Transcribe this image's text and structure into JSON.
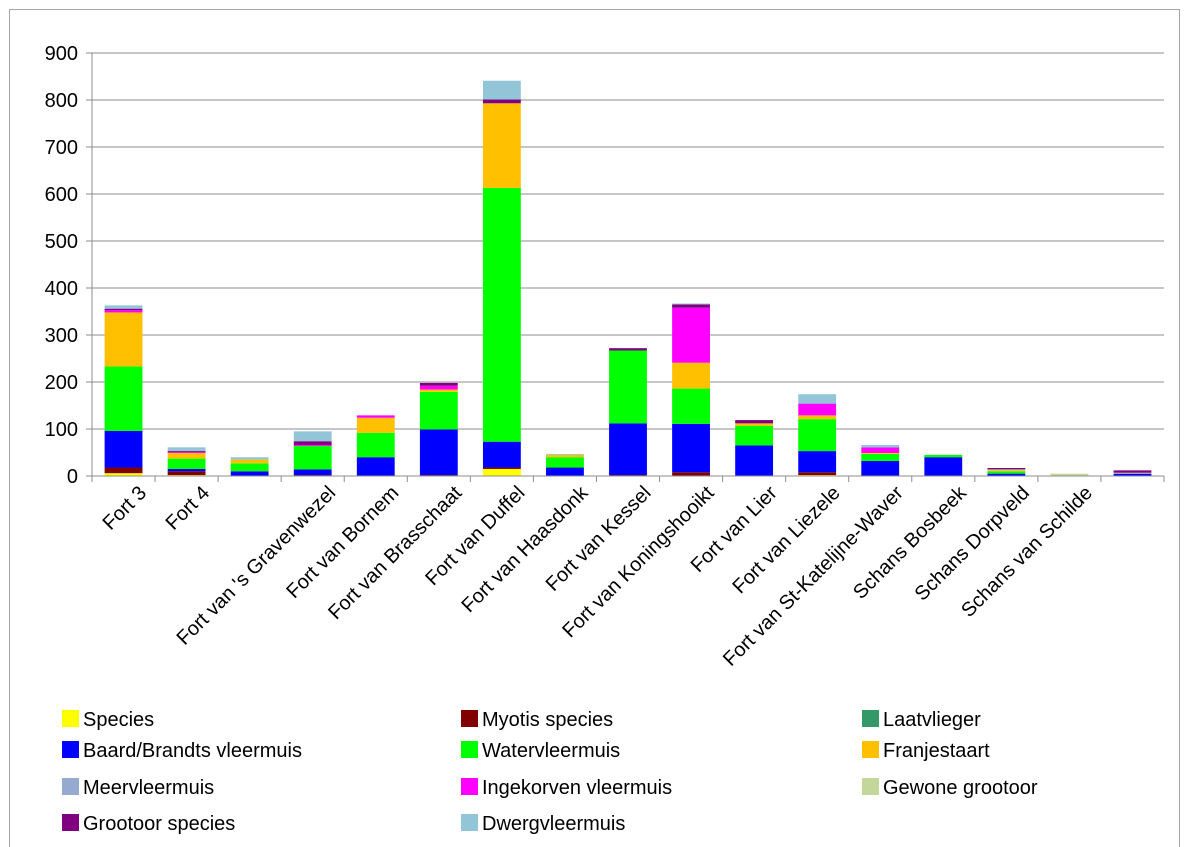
{
  "chart_data": {
    "type": "bar",
    "stacked": true,
    "title": "",
    "xlabel": "",
    "ylabel": "",
    "ylim": [
      0,
      900
    ],
    "yticks": [
      0,
      100,
      200,
      300,
      400,
      500,
      600,
      700,
      800,
      900
    ],
    "grid": true,
    "legend_position": "bottom",
    "categories": [
      "Fort 3",
      "Fort 4",
      "",
      "Fort van 's Gravenwezel",
      "Fort van Bornem",
      "Fort van Brasschaat",
      "Fort van Duffel",
      "Fort van Haasdonk",
      "Fort van Kessel",
      "Fort van Koningshooikt",
      "Fort van Lier",
      "Fort van Liezele",
      "Fort van St-Katelijne-Waver",
      "Schans Bosbeek",
      "Schans Dorpveld",
      "Schans van Schilde",
      ""
    ],
    "tick_labels": [
      "Fort 3",
      "Fort 4",
      "Fort van 's Gravenwezel",
      "Fort van Bornem",
      "Fort van Brasschaat",
      "Fort van Duffel",
      "Fort van Haasdonk",
      "Fort van Kessel",
      "Fort van Koningshooikt",
      "Fort van Lier",
      "Fort van Liezele",
      "Fort van St-Katelijne-Waver",
      "Schans Bosbeek",
      "Schans Dorpveld",
      "Schans van Schilde"
    ],
    "series": [
      {
        "name": "Species",
        "color": "#ffff00",
        "values": [
          6,
          2,
          0,
          0,
          0,
          0,
          15,
          0,
          0,
          0,
          0,
          2,
          0,
          0,
          0,
          0,
          0
        ]
      },
      {
        "name": "Myotis species",
        "color": "#800000",
        "values": [
          12,
          8,
          0,
          2,
          0,
          2,
          3,
          0,
          2,
          8,
          0,
          6,
          0,
          0,
          0,
          0,
          0
        ]
      },
      {
        "name": "Laatvlieger",
        "color": "#339966",
        "values": [
          0,
          0,
          0,
          0,
          0,
          0,
          0,
          0,
          0,
          0,
          0,
          0,
          0,
          0,
          0,
          0,
          0
        ]
      },
      {
        "name": "Baard/Brandts vleermuis",
        "color": "#0000ff",
        "values": [
          78,
          5,
          10,
          12,
          40,
          97,
          55,
          18,
          110,
          103,
          65,
          45,
          32,
          40,
          5,
          0,
          5
        ]
      },
      {
        "name": "Watervleermuis",
        "color": "#00ff00",
        "values": [
          137,
          22,
          17,
          50,
          52,
          80,
          540,
          22,
          155,
          75,
          42,
          68,
          15,
          5,
          5,
          0,
          0
        ]
      },
      {
        "name": "Franjestaart",
        "color": "#ffc000",
        "values": [
          115,
          12,
          8,
          0,
          32,
          5,
          180,
          5,
          0,
          55,
          5,
          8,
          2,
          0,
          2,
          0,
          0
        ]
      },
      {
        "name": "Meervleermuis",
        "color": "#95a9d1",
        "values": [
          0,
          0,
          0,
          0,
          0,
          0,
          0,
          0,
          0,
          0,
          0,
          0,
          0,
          0,
          0,
          0,
          0
        ]
      },
      {
        "name": "Ingekorven vleermuis",
        "color": "#ff00ff",
        "values": [
          5,
          2,
          0,
          2,
          5,
          8,
          0,
          0,
          0,
          117,
          0,
          25,
          12,
          0,
          0,
          0,
          0
        ]
      },
      {
        "name": "Gewone grootoor",
        "color": "#c4d79b",
        "values": [
          0,
          0,
          0,
          0,
          0,
          0,
          0,
          0,
          0,
          0,
          0,
          0,
          0,
          0,
          2,
          5,
          2
        ]
      },
      {
        "name": "Grootoor species",
        "color": "#800080",
        "values": [
          3,
          2,
          0,
          8,
          0,
          6,
          8,
          0,
          5,
          7,
          7,
          0,
          0,
          0,
          3,
          0,
          5
        ]
      },
      {
        "name": "Dwergvleermuis",
        "color": "#92c5d8",
        "values": [
          7,
          8,
          5,
          21,
          0,
          0,
          40,
          2,
          0,
          2,
          0,
          20,
          5,
          0,
          0,
          0,
          0
        ]
      }
    ]
  }
}
